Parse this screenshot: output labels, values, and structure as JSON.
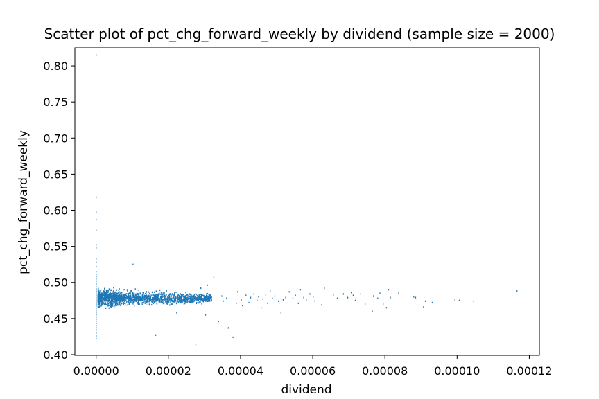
{
  "chart_data": {
    "type": "scatter",
    "title": "Scatter plot of pct_chg_forward_weekly by dividend (sample size = 2000)",
    "xlabel": "dividend",
    "ylabel": "pct_chg_forward_weekly",
    "xlim": [
      -5.9e-06,
      0.0001228
    ],
    "ylim": [
      0.399,
      0.825
    ],
    "xticks": [
      {
        "value": 0.0,
        "label": "0.00000"
      },
      {
        "value": 2e-05,
        "label": "0.00002"
      },
      {
        "value": 4e-05,
        "label": "0.00004"
      },
      {
        "value": 6e-05,
        "label": "0.00006"
      },
      {
        "value": 8e-05,
        "label": "0.00008"
      },
      {
        "value": 0.0001,
        "label": "0.00010"
      },
      {
        "value": 0.00012,
        "label": "0.00012"
      }
    ],
    "yticks": [
      {
        "value": 0.4,
        "label": "0.40"
      },
      {
        "value": 0.45,
        "label": "0.45"
      },
      {
        "value": 0.5,
        "label": "0.50"
      },
      {
        "value": 0.55,
        "label": "0.55"
      },
      {
        "value": 0.6,
        "label": "0.60"
      },
      {
        "value": 0.65,
        "label": "0.65"
      },
      {
        "value": 0.7,
        "label": "0.70"
      },
      {
        "value": 0.75,
        "label": "0.75"
      },
      {
        "value": 0.8,
        "label": "0.80"
      }
    ],
    "grid": false,
    "marker_color": "#1f77b4",
    "series": [
      {
        "points": [
          [
            0,
            0.815
          ],
          [
            0,
            0.618
          ],
          [
            0,
            0.597
          ],
          [
            0,
            0.587
          ],
          [
            0,
            0.572
          ],
          [
            0,
            0.552
          ],
          [
            0,
            0.548
          ],
          [
            0,
            0.533
          ],
          [
            0,
            0.528
          ],
          [
            0,
            0.522
          ],
          [
            0,
            0.515
          ],
          [
            0,
            0.511
          ],
          [
            0,
            0.508
          ],
          [
            0,
            0.505
          ],
          [
            0,
            0.502
          ],
          [
            0,
            0.499
          ],
          [
            0,
            0.497
          ],
          [
            0,
            0.494
          ],
          [
            0,
            0.491
          ],
          [
            0,
            0.488
          ],
          [
            0,
            0.485
          ],
          [
            0,
            0.482
          ],
          [
            0,
            0.479
          ],
          [
            0,
            0.476
          ],
          [
            0,
            0.473
          ],
          [
            0,
            0.47
          ],
          [
            0,
            0.467
          ],
          [
            0,
            0.464
          ],
          [
            0,
            0.461
          ],
          [
            0,
            0.458
          ],
          [
            0,
            0.455
          ],
          [
            0,
            0.452
          ],
          [
            0,
            0.449
          ],
          [
            0,
            0.446
          ],
          [
            0,
            0.443
          ],
          [
            0,
            0.44
          ],
          [
            0,
            0.437
          ],
          [
            0,
            0.434
          ],
          [
            0,
            0.43
          ],
          [
            0,
            0.426
          ],
          [
            0,
            0.422
          ],
          [
            9e-07,
            0.472
          ],
          [
            9e-07,
            0.485
          ],
          [
            1.02e-05,
            0.525
          ],
          [
            3.26e-05,
            0.507
          ],
          [
            3.03e-05,
            0.455
          ],
          [
            3.39e-05,
            0.446
          ],
          [
            1.65e-05,
            0.427
          ],
          [
            2.76e-05,
            0.414
          ],
          [
            3.66e-05,
            0.437
          ],
          [
            3.79e-05,
            0.424
          ],
          [
            2.23e-05,
            0.458
          ],
          [
            2.9e-05,
            0.492
          ],
          [
            3.08e-05,
            0.496
          ],
          [
            3.48e-05,
            0.481
          ],
          [
            3.52e-05,
            0.474
          ],
          [
            3.61e-05,
            0.478
          ],
          [
            3.88e-05,
            0.471
          ],
          [
            3.92e-05,
            0.487
          ],
          [
            4.02e-05,
            0.476
          ],
          [
            4.05e-05,
            0.468
          ],
          [
            4.15e-05,
            0.482
          ],
          [
            4.23e-05,
            0.472
          ],
          [
            4.28e-05,
            0.479
          ],
          [
            4.37e-05,
            0.484
          ],
          [
            4.46e-05,
            0.475
          ],
          [
            4.5e-05,
            0.48
          ],
          [
            4.57e-05,
            0.465
          ],
          [
            4.62e-05,
            0.477
          ],
          [
            4.7e-05,
            0.483
          ],
          [
            4.75e-05,
            0.471
          ],
          [
            4.82e-05,
            0.488
          ],
          [
            4.88e-05,
            0.478
          ],
          [
            4.95e-05,
            0.481
          ],
          [
            5.05e-05,
            0.474
          ],
          [
            5.12e-05,
            0.458
          ],
          [
            5.18e-05,
            0.476
          ],
          [
            5.25e-05,
            0.479
          ],
          [
            5.35e-05,
            0.487
          ],
          [
            5.45e-05,
            0.478
          ],
          [
            5.52e-05,
            0.482
          ],
          [
            5.6e-05,
            0.471
          ],
          [
            5.66e-05,
            0.49
          ],
          [
            5.75e-05,
            0.479
          ],
          [
            5.82e-05,
            0.476
          ],
          [
            5.92e-05,
            0.484
          ],
          [
            6.01e-05,
            0.48
          ],
          [
            6.06e-05,
            0.474
          ],
          [
            6.25e-05,
            0.469
          ],
          [
            6.32e-05,
            0.492
          ],
          [
            6.57e-05,
            0.483
          ],
          [
            6.68e-05,
            0.478
          ],
          [
            6.85e-05,
            0.484
          ],
          [
            6.97e-05,
            0.479
          ],
          [
            7.08e-05,
            0.486
          ],
          [
            7.12e-05,
            0.482
          ],
          [
            7.18e-05,
            0.475
          ],
          [
            7.33e-05,
            0.484
          ],
          [
            7.45e-05,
            0.47
          ],
          [
            7.65e-05,
            0.46
          ],
          [
            7.68e-05,
            0.481
          ],
          [
            7.8e-05,
            0.478
          ],
          [
            7.86e-05,
            0.485
          ],
          [
            7.95e-05,
            0.47
          ],
          [
            8.04e-05,
            0.465
          ],
          [
            8.1e-05,
            0.49
          ],
          [
            8.15e-05,
            0.479
          ],
          [
            8.38e-05,
            0.485
          ],
          [
            8.8e-05,
            0.48
          ],
          [
            8.85e-05,
            0.479
          ],
          [
            9.07e-05,
            0.466
          ],
          [
            9.12e-05,
            0.474
          ],
          [
            9.31e-05,
            0.472
          ],
          [
            9.94e-05,
            0.476
          ],
          [
            0.0001006,
            0.475
          ],
          [
            0.0001046,
            0.474
          ],
          [
            0.0001166,
            0.488
          ]
        ],
        "dense_cluster": {
          "x_range": [
            5e-07,
            3.2e-05
          ],
          "y_center": 0.478,
          "y_spread": 0.012,
          "count": 1650
        }
      }
    ]
  }
}
